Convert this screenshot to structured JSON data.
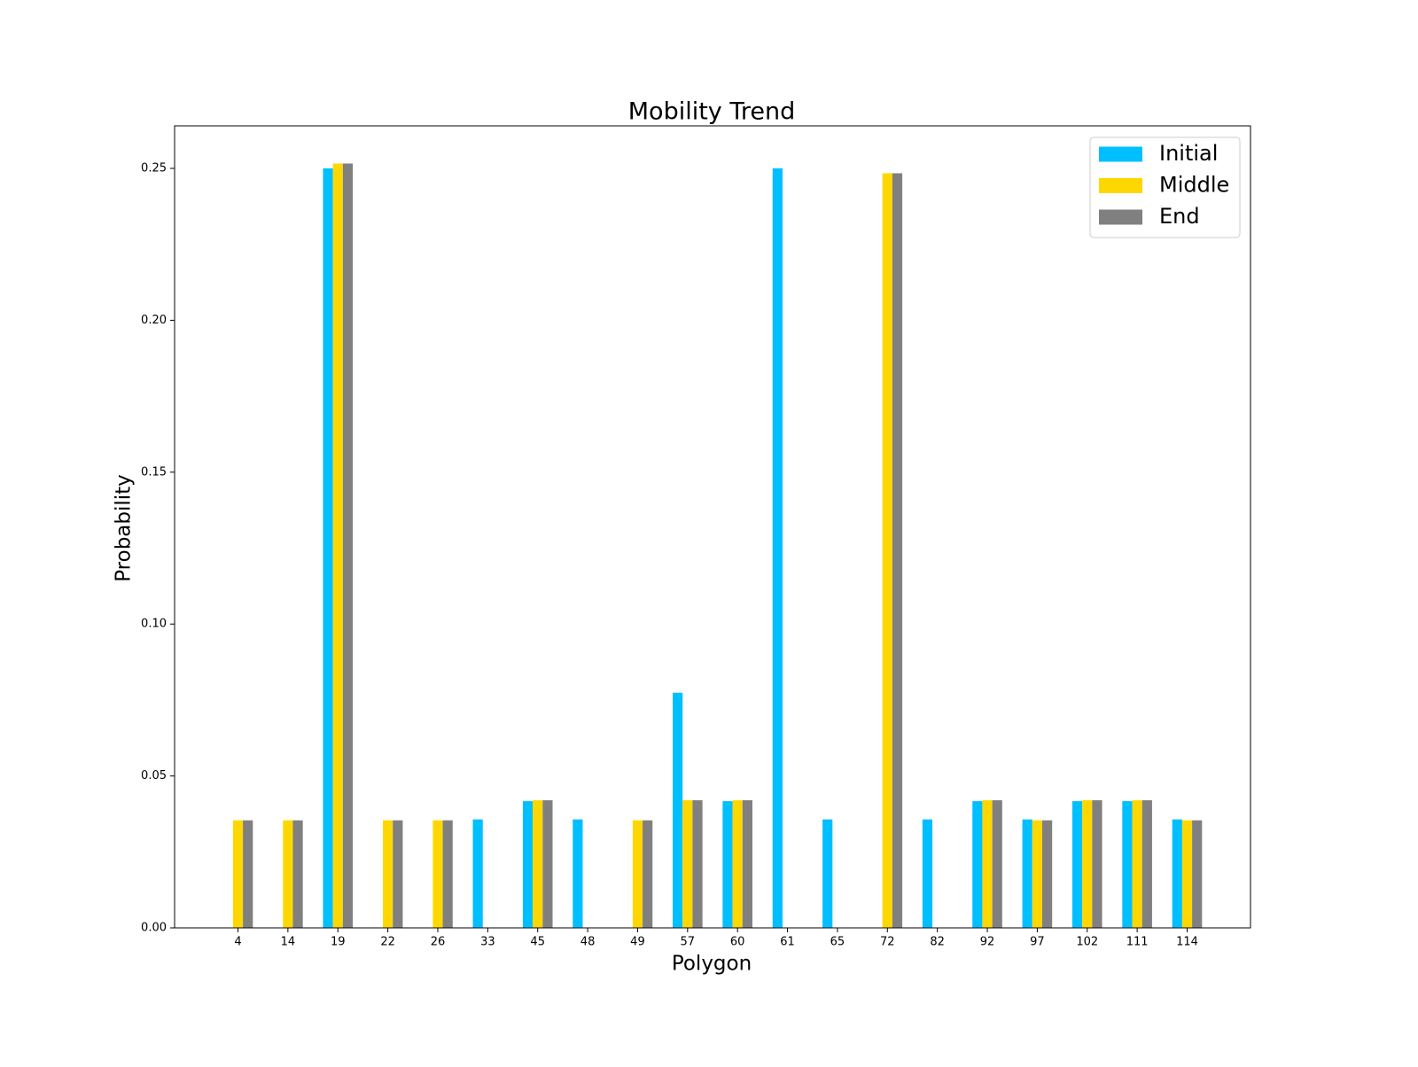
{
  "chart_data": {
    "type": "bar",
    "title": "Mobility Trend",
    "xlabel": "Polygon",
    "ylabel": "Probability",
    "ylim": [
      0,
      0.264
    ],
    "yticks": [
      "0.00",
      "0.05",
      "0.10",
      "0.15",
      "0.20",
      "0.25"
    ],
    "grid": false,
    "legend_position": "top-right",
    "categories": [
      "4",
      "14",
      "19",
      "22",
      "26",
      "33",
      "45",
      "48",
      "49",
      "57",
      "60",
      "61",
      "65",
      "72",
      "82",
      "92",
      "97",
      "102",
      "111",
      "114"
    ],
    "series": [
      {
        "name": "Initial",
        "color": "#00bfff",
        "values": [
          0,
          0,
          0.25,
          0,
          0,
          0.0357,
          0.0417,
          0.0357,
          0,
          0.0774,
          0.0417,
          0.25,
          0.0357,
          0,
          0.0357,
          0.0417,
          0.0357,
          0.0417,
          0.0417,
          0.0357
        ]
      },
      {
        "name": "Middle",
        "color": "#ffd700",
        "values": [
          0.0354,
          0.0354,
          0.2516,
          0.0354,
          0.0354,
          0,
          0.042,
          0,
          0.0354,
          0.042,
          0.042,
          0,
          0,
          0.2484,
          0,
          0.042,
          0.0354,
          0.042,
          0.042,
          0.0354
        ]
      },
      {
        "name": "End",
        "color": "#808080",
        "values": [
          0.0354,
          0.0354,
          0.2516,
          0.0354,
          0.0354,
          0,
          0.042,
          0,
          0.0354,
          0.042,
          0.042,
          0,
          0,
          0.2484,
          0,
          0.042,
          0.0354,
          0.042,
          0.042,
          0.0354
        ]
      }
    ]
  }
}
